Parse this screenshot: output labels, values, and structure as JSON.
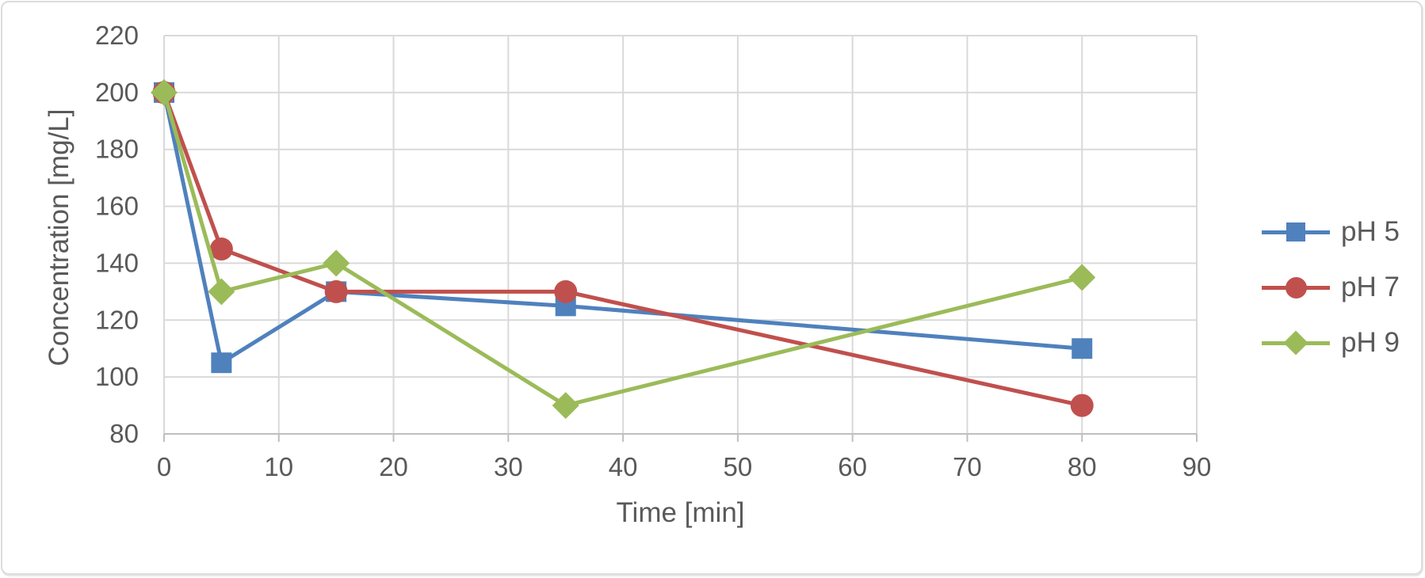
{
  "chart_data": {
    "type": "line",
    "title": "",
    "xlabel": "Time [min]",
    "ylabel": "Concentration [mg/L]",
    "x": [
      0,
      5,
      15,
      35,
      80
    ],
    "series": [
      {
        "name": "pH 5",
        "marker": "square",
        "color": "#4F81BD",
        "values": [
          200,
          105,
          130,
          125,
          110
        ]
      },
      {
        "name": "pH 7",
        "marker": "circle",
        "color": "#C0504D",
        "values": [
          200,
          145,
          130,
          130,
          90
        ]
      },
      {
        "name": "pH 9",
        "marker": "diamond",
        "color": "#9BBB59",
        "values": [
          200,
          130,
          140,
          90,
          135
        ]
      }
    ],
    "xlim": [
      0,
      90
    ],
    "ylim": [
      80,
      220
    ],
    "xticks": [
      0,
      10,
      20,
      30,
      40,
      50,
      60,
      70,
      80,
      90
    ],
    "yticks": [
      80,
      100,
      120,
      140,
      160,
      180,
      200,
      220
    ],
    "grid": true,
    "legend_position": "right",
    "colors": {
      "gridline": "#D9D9D9",
      "axis_line": "#BFBFBF",
      "text": "#595959",
      "background": "#FFFFFF"
    }
  }
}
